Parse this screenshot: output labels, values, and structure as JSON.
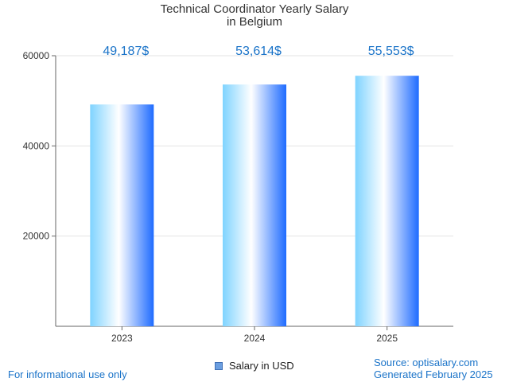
{
  "chart_data": {
    "type": "bar",
    "title_line1": "Technical Coordinator Yearly Salary",
    "title_line2": "in Belgium",
    "categories": [
      "2023",
      "2024",
      "2025"
    ],
    "values": [
      49187,
      53614,
      55553
    ],
    "value_labels": [
      "49,187$",
      "53,614$",
      "55,553$"
    ],
    "yticks": [
      "20000",
      "40000",
      "60000"
    ],
    "ytick_values": [
      20000,
      40000,
      60000
    ],
    "ylim": [
      0,
      60000
    ],
    "grid": true,
    "legend": {
      "label": "Salary in USD",
      "position": "bottom"
    },
    "colors": {
      "bar_light": "#ffffff",
      "bar_mid": "#7fd3ff",
      "bar_dark": "#1e6bff",
      "label": "#1a73c8"
    }
  },
  "footer": {
    "note": "For informational use only",
    "source": "Source: optisalary.com",
    "generated": "Generated February 2025"
  }
}
